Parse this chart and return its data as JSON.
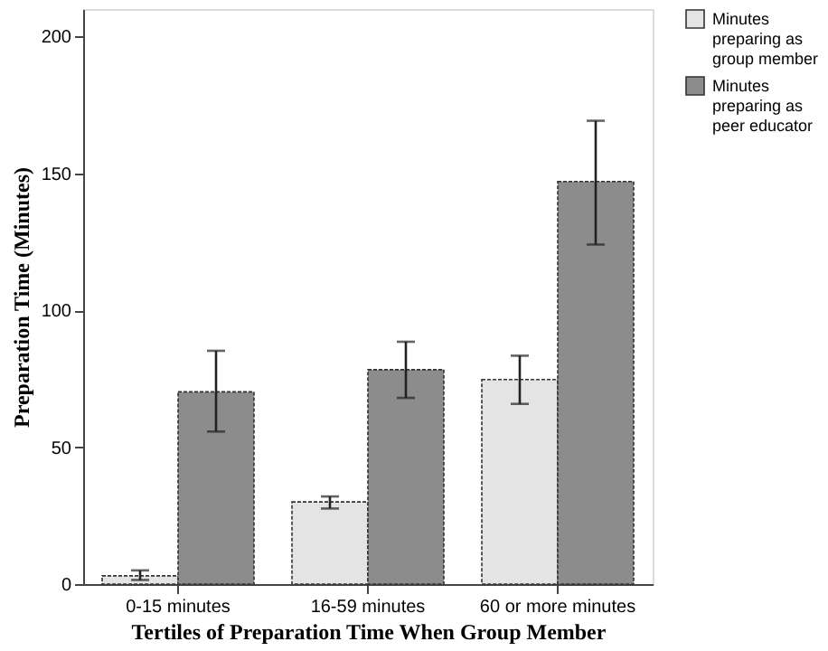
{
  "chart_data": {
    "type": "bar",
    "xlabel": "Tertiles of Preparation Time When Group Member",
    "ylabel": "Preparation Time (Minutes)",
    "categories": [
      "0-15 minutes",
      "16-59 minutes",
      "60 or more minutes"
    ],
    "series": [
      {
        "name": "Minutes preparing as group member",
        "color": "#e4e4e4",
        "values": [
          3,
          30,
          74.7
        ],
        "errors": [
          [
            1.5,
            5
          ],
          [
            27.6,
            32
          ],
          [
            65.8,
            83.4
          ]
        ]
      },
      {
        "name": "Minutes preparing as peer educator",
        "color": "#8c8c8c",
        "values": [
          70.2,
          78.3,
          147
        ],
        "errors": [
          [
            55.7,
            85.2
          ],
          [
            68,
            88.5
          ],
          [
            124,
            169.2
          ]
        ]
      }
    ],
    "ylim": [
      0,
      210
    ],
    "yticks": [
      0,
      50,
      100,
      150,
      200
    ],
    "grid": false,
    "legend": "top right"
  }
}
